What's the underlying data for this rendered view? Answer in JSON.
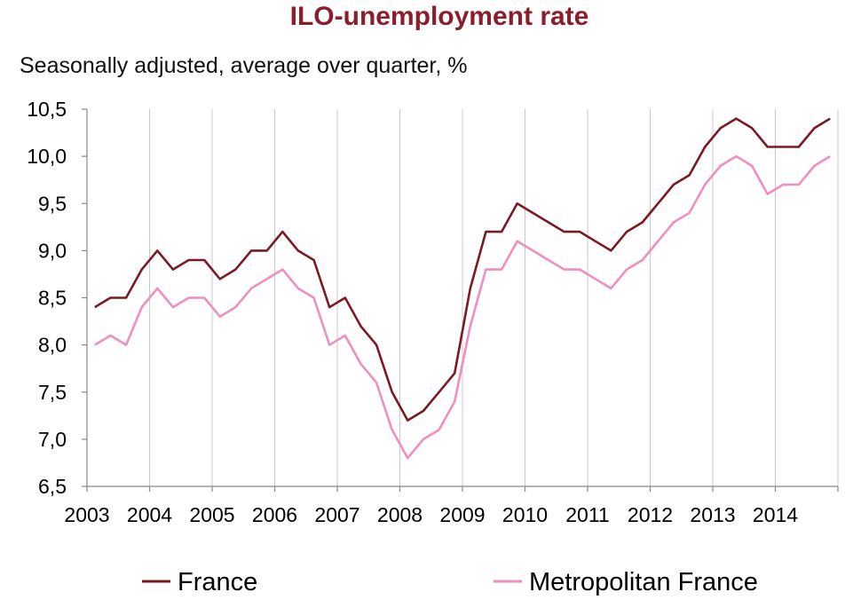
{
  "chart_data": {
    "type": "line",
    "title": "ILO-unemployment rate",
    "subtitle": "Seasonally adjusted, average over quarter, %",
    "xlabel": "",
    "ylabel": "",
    "ylim": [
      6.5,
      10.5
    ],
    "ytick_labels": [
      "6,5",
      "7,0",
      "7,5",
      "8,0",
      "8,5",
      "9,0",
      "9,5",
      "10,0",
      "10,5"
    ],
    "xtick_labels": [
      "2003",
      "2004",
      "2005",
      "2006",
      "2007",
      "2008",
      "2009",
      "2010",
      "2011",
      "2012",
      "2013",
      "2014"
    ],
    "x_start_year": 2003,
    "periods_per_year": 4,
    "grid": "vertical",
    "legend_position": "bottom",
    "series": [
      {
        "name": "France",
        "color": "#7b1a22",
        "values": [
          8.4,
          8.5,
          8.5,
          8.8,
          9.0,
          8.8,
          8.9,
          8.9,
          8.7,
          8.8,
          9.0,
          9.0,
          9.2,
          9.0,
          8.9,
          8.4,
          8.5,
          8.2,
          8.0,
          7.5,
          7.2,
          7.3,
          7.5,
          7.7,
          8.6,
          9.2,
          9.2,
          9.5,
          9.4,
          9.3,
          9.2,
          9.2,
          9.1,
          9.0,
          9.2,
          9.3,
          9.5,
          9.7,
          9.8,
          10.1,
          10.3,
          10.4,
          10.3,
          10.1,
          10.1,
          10.1,
          10.3,
          10.4
        ]
      },
      {
        "name": "Metropolitan France",
        "color": "#ee8fbf",
        "values": [
          8.0,
          8.1,
          8.0,
          8.4,
          8.6,
          8.4,
          8.5,
          8.5,
          8.3,
          8.4,
          8.6,
          8.7,
          8.8,
          8.6,
          8.5,
          8.0,
          8.1,
          7.8,
          7.6,
          7.1,
          6.8,
          7.0,
          7.1,
          7.4,
          8.2,
          8.8,
          8.8,
          9.1,
          9.0,
          8.9,
          8.8,
          8.8,
          8.7,
          8.6,
          8.8,
          8.9,
          9.1,
          9.3,
          9.4,
          9.7,
          9.9,
          10.0,
          9.9,
          9.6,
          9.7,
          9.7,
          9.9,
          10.0
        ]
      }
    ]
  }
}
